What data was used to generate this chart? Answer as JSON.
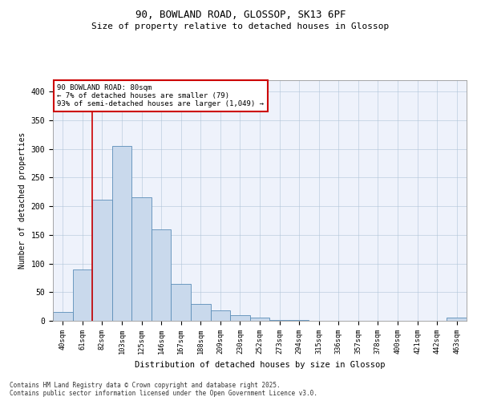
{
  "title_line1": "90, BOWLAND ROAD, GLOSSOP, SK13 6PF",
  "title_line2": "Size of property relative to detached houses in Glossop",
  "xlabel": "Distribution of detached houses by size in Glossop",
  "ylabel": "Number of detached properties",
  "bar_labels": [
    "40sqm",
    "61sqm",
    "82sqm",
    "103sqm",
    "125sqm",
    "146sqm",
    "167sqm",
    "188sqm",
    "209sqm",
    "230sqm",
    "252sqm",
    "273sqm",
    "294sqm",
    "315sqm",
    "336sqm",
    "357sqm",
    "378sqm",
    "400sqm",
    "421sqm",
    "442sqm",
    "463sqm"
  ],
  "bar_values": [
    15,
    90,
    212,
    305,
    215,
    160,
    65,
    30,
    18,
    10,
    5,
    2,
    1,
    0,
    0,
    0,
    0,
    0,
    0,
    0,
    5
  ],
  "bar_color": "#c9d9ec",
  "bar_edge_color": "#5b8db8",
  "vline_color": "#cc0000",
  "annotation_title": "90 BOWLAND ROAD: 80sqm",
  "annotation_line1": "← 7% of detached houses are smaller (79)",
  "annotation_line2": "93% of semi-detached houses are larger (1,049) →",
  "annotation_box_facecolor": "#ffffff",
  "annotation_box_edgecolor": "#cc0000",
  "ylim": [
    0,
    420
  ],
  "yticks": [
    0,
    50,
    100,
    150,
    200,
    250,
    300,
    350,
    400
  ],
  "bg_color": "#eef2fb",
  "footer_line1": "Contains HM Land Registry data © Crown copyright and database right 2025.",
  "footer_line2": "Contains public sector information licensed under the Open Government Licence v3.0."
}
